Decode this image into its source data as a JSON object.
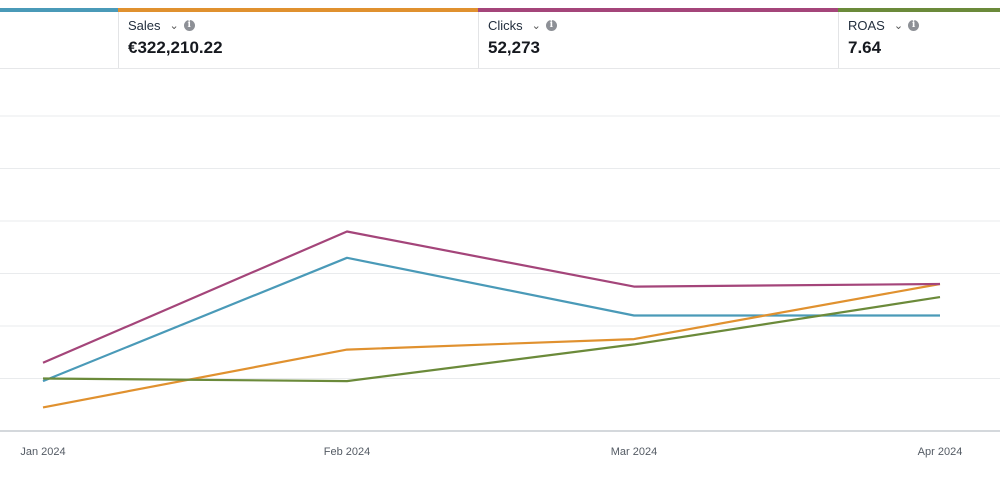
{
  "metrics": [
    {
      "label": "Sales",
      "value": "€322,210.22",
      "color": "#e0912f"
    },
    {
      "label": "Clicks",
      "value": "52,273",
      "color": "#a4457a"
    },
    {
      "label": "ROAS",
      "value": "7.64",
      "color": "#6b8a3a"
    }
  ],
  "icons": {
    "dropdown": "chevron-down-icon",
    "info": "info-icon"
  },
  "chart_data": {
    "type": "line",
    "categories": [
      "Jan 2024",
      "Feb 2024",
      "Mar 2024",
      "Apr 2024"
    ],
    "ylim": [
      0,
      6
    ],
    "grid": true,
    "series": [
      {
        "name": "(unlabeled)",
        "color": "#4a9ab8",
        "values": [
          0.95,
          3.3,
          2.2,
          2.2
        ]
      },
      {
        "name": "Sales",
        "color": "#e0912f",
        "values": [
          0.45,
          1.55,
          1.75,
          2.8
        ]
      },
      {
        "name": "Clicks",
        "color": "#a4457a",
        "values": [
          1.3,
          3.8,
          2.75,
          2.8
        ]
      },
      {
        "name": "ROAS",
        "color": "#6b8a3a",
        "values": [
          1.0,
          0.95,
          1.65,
          2.55
        ]
      }
    ]
  }
}
